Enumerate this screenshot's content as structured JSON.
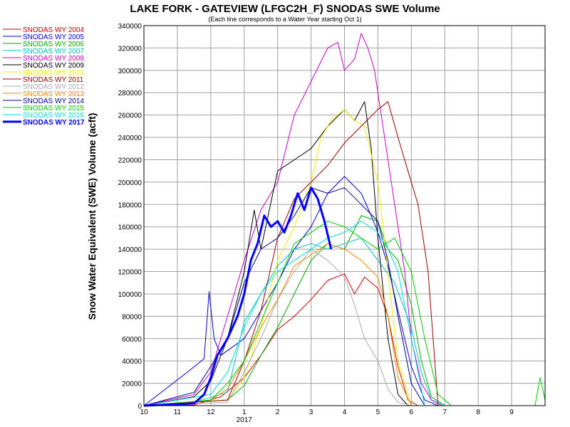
{
  "chart_data": {
    "type": "line",
    "title": "LAKE FORK - GATEVIEW (LFGC2H_F) SNODAS SWE Volume",
    "subtitle": "(Each line corresponds to a Water Year starting Oct 1)",
    "ylabel": "Snow Water Equivalent (SWE) Volume (acft)",
    "xlabel": "",
    "x_unit": "month index (Oct 1 = 10, Jan 1 = 13, Sep 1 = 21)",
    "xlim": [
      10,
      22
    ],
    "ylim": [
      0,
      340000
    ],
    "yticks": [
      0,
      20000,
      40000,
      60000,
      80000,
      100000,
      120000,
      140000,
      160000,
      180000,
      200000,
      220000,
      240000,
      260000,
      280000,
      300000,
      320000,
      340000
    ],
    "xticks": [
      {
        "x": 10,
        "label": "10"
      },
      {
        "x": 11,
        "label": "11"
      },
      {
        "x": 12,
        "label": "12"
      },
      {
        "x": 13,
        "label": "1"
      },
      {
        "x": 14,
        "label": "2"
      },
      {
        "x": 15,
        "label": "3"
      },
      {
        "x": 16,
        "label": "4"
      },
      {
        "x": 17,
        "label": "5"
      },
      {
        "x": 18,
        "label": "6"
      },
      {
        "x": 19,
        "label": "7"
      },
      {
        "x": 20,
        "label": "8"
      },
      {
        "x": 21,
        "label": "9"
      }
    ],
    "year_label": {
      "x": 13,
      "label": "2017"
    },
    "grid": true,
    "legend_position": "left",
    "series": [
      {
        "name": "SNODAS WY 2004",
        "color": "#cc0000",
        "width": 1,
        "x": [
          10,
          11.5,
          12.3,
          13,
          13.5,
          14,
          14.5,
          15,
          15.5,
          16,
          16.3,
          16.6,
          17,
          17.3,
          17.6,
          17.9,
          18.2
        ],
        "y": [
          0,
          500,
          8000,
          25000,
          45000,
          68000,
          80000,
          95000,
          112000,
          118000,
          100000,
          115000,
          105000,
          80000,
          35000,
          5000,
          0
        ]
      },
      {
        "name": "SNODAS WY 2005",
        "color": "#0000cc",
        "width": 1,
        "x": [
          10,
          11.3,
          11.8,
          11.95,
          12.1,
          12.3,
          13,
          13.5,
          14,
          14.5,
          15,
          15.5,
          16,
          16.5,
          16.8,
          17,
          17.3,
          17.6,
          18,
          18.4,
          18.8
        ],
        "y": [
          0,
          30000,
          42000,
          102000,
          60000,
          45000,
          60000,
          85000,
          110000,
          140000,
          160000,
          190000,
          205000,
          190000,
          170000,
          155000,
          125000,
          85000,
          35000,
          5000,
          0
        ]
      },
      {
        "name": "SNODAS WY 2006",
        "color": "#00aa00",
        "width": 1,
        "x": [
          10,
          12.5,
          13,
          13.5,
          14,
          14.5,
          15,
          15.5,
          16,
          16.5,
          17,
          17.3,
          17.6,
          18,
          18.3,
          18.6,
          19
        ],
        "y": [
          0,
          5000,
          18000,
          45000,
          70000,
          100000,
          130000,
          145000,
          140000,
          170000,
          165000,
          140000,
          130000,
          90000,
          40000,
          8000,
          0
        ]
      },
      {
        "name": "SNODAS WY 2007",
        "color": "#00c0c0",
        "width": 1,
        "x": [
          10,
          11.5,
          12.5,
          13,
          13.5,
          14,
          14.5,
          15,
          15.5,
          16,
          16.5,
          17,
          17.5,
          18,
          18.3,
          18.6,
          19
        ],
        "y": [
          0,
          3000,
          12000,
          75000,
          100000,
          125000,
          140000,
          145000,
          140000,
          145000,
          150000,
          130000,
          110000,
          70000,
          30000,
          5000,
          0
        ]
      },
      {
        "name": "SNODAS WY 2008",
        "color": "#cc00cc",
        "width": 1,
        "x": [
          10,
          11.5,
          12,
          12.5,
          13,
          13.5,
          14,
          14.5,
          15,
          15.5,
          15.8,
          16,
          16.3,
          16.5,
          16.7,
          16.9,
          17.2,
          17.5,
          17.8,
          18,
          18.3,
          18.6,
          18.9
        ],
        "y": [
          0,
          10000,
          30000,
          80000,
          130000,
          175000,
          200000,
          260000,
          290000,
          320000,
          325000,
          300000,
          310000,
          333000,
          320000,
          300000,
          240000,
          180000,
          120000,
          60000,
          20000,
          5000,
          0
        ]
      },
      {
        "name": "SNODAS WY 2009",
        "color": "#000000",
        "width": 1,
        "x": [
          10,
          11.5,
          12,
          12.5,
          13,
          13.3,
          13.5,
          14,
          14.5,
          15,
          15.5,
          16,
          16.3,
          16.6,
          16.8,
          17,
          17.3,
          17.6,
          17.9
        ],
        "y": [
          0,
          8000,
          22000,
          60000,
          120000,
          175000,
          140000,
          210000,
          220000,
          230000,
          250000,
          265000,
          255000,
          272000,
          230000,
          150000,
          60000,
          10000,
          0
        ]
      },
      {
        "name": "SNODAS WY 2010",
        "color": "#eeee00",
        "width": 1,
        "x": [
          10,
          12.5,
          13,
          13.5,
          14,
          14.5,
          15,
          15.3,
          15.6,
          16,
          16.3,
          16.6,
          17,
          17.3,
          17.6,
          18
        ],
        "y": [
          0,
          5000,
          25000,
          70000,
          130000,
          160000,
          200000,
          240000,
          255000,
          265000,
          255000,
          250000,
          200000,
          120000,
          40000,
          0
        ]
      },
      {
        "name": "SNODAS WY 2011",
        "color": "#990000",
        "width": 1,
        "x": [
          10,
          12.5,
          13,
          13.5,
          14,
          14.5,
          15,
          15.5,
          16,
          16.5,
          17,
          17.3,
          17.6,
          17.9,
          18.2,
          18.5,
          18.8
        ],
        "y": [
          0,
          5000,
          40000,
          85000,
          150000,
          185000,
          200000,
          215000,
          235000,
          250000,
          265000,
          272000,
          240000,
          210000,
          180000,
          120000,
          0
        ]
      },
      {
        "name": "SNODAS WY 2012",
        "color": "#aaaaaa",
        "width": 1,
        "x": [
          10,
          12.5,
          13,
          13.5,
          14,
          14.5,
          15,
          15.5,
          16,
          16.3,
          16.6,
          17,
          17.3,
          17.6,
          18
        ],
        "y": [
          0,
          3000,
          30000,
          60000,
          95000,
          120000,
          140000,
          130000,
          115000,
          90000,
          60000,
          40000,
          15000,
          3000,
          0
        ]
      },
      {
        "name": "SNODAS WY 2013",
        "color": "#ee8800",
        "width": 1,
        "x": [
          10,
          12,
          12.5,
          13,
          13.5,
          14,
          14.5,
          15,
          15.5,
          16,
          16.5,
          17,
          17.3,
          17.6,
          18
        ],
        "y": [
          0,
          5000,
          15000,
          40000,
          70000,
          95000,
          125000,
          135000,
          145000,
          140000,
          130000,
          115000,
          80000,
          25000,
          0
        ]
      },
      {
        "name": "SNODAS WY 2014",
        "color": "#000088",
        "width": 1,
        "x": [
          10,
          11.5,
          12,
          12.5,
          13,
          13.5,
          14,
          14.5,
          15,
          15.5,
          16,
          16.5,
          17,
          17.3,
          17.6,
          18,
          18.4
        ],
        "y": [
          0,
          12000,
          35000,
          60000,
          110000,
          140000,
          150000,
          170000,
          195000,
          190000,
          195000,
          180000,
          165000,
          130000,
          80000,
          20000,
          0
        ]
      },
      {
        "name": "SNODAS WY 2015",
        "color": "#00cc00",
        "width": 1,
        "x": [
          10,
          12,
          12.5,
          13,
          13.5,
          14,
          14.5,
          15,
          15.5,
          16,
          16.5,
          17,
          17.5,
          18,
          18.4,
          18.8,
          19.2,
          21,
          21.7,
          21.85,
          22
        ],
        "y": [
          0,
          5000,
          20000,
          40000,
          75000,
          110000,
          145000,
          155000,
          165000,
          160000,
          150000,
          140000,
          150000,
          120000,
          60000,
          10000,
          0,
          0,
          0,
          25000,
          5000
        ]
      },
      {
        "name": "SNODAS WY 2016",
        "color": "#00dddd",
        "width": 1,
        "x": [
          10,
          12,
          12.5,
          13,
          13.5,
          14,
          14.5,
          15,
          15.5,
          16,
          16.5,
          17,
          17.3,
          17.6,
          18,
          18.4
        ],
        "y": [
          0,
          10000,
          30000,
          70000,
          100000,
          120000,
          130000,
          140000,
          150000,
          155000,
          165000,
          155000,
          140000,
          120000,
          60000,
          0
        ]
      },
      {
        "name": "SNODAS WY 2017",
        "color": "#0000ff",
        "width": 3,
        "x": [
          10,
          11.5,
          11.8,
          12.0,
          12.2,
          12.5,
          12.8,
          13.0,
          13.2,
          13.4,
          13.6,
          13.8,
          14.0,
          14.2,
          14.4,
          14.6,
          14.8,
          15.0,
          15.2,
          15.4,
          15.6
        ],
        "y": [
          0,
          2000,
          10000,
          25000,
          45000,
          60000,
          80000,
          100000,
          130000,
          145000,
          170000,
          160000,
          165000,
          155000,
          170000,
          190000,
          175000,
          195000,
          185000,
          165000,
          140000
        ]
      }
    ]
  }
}
